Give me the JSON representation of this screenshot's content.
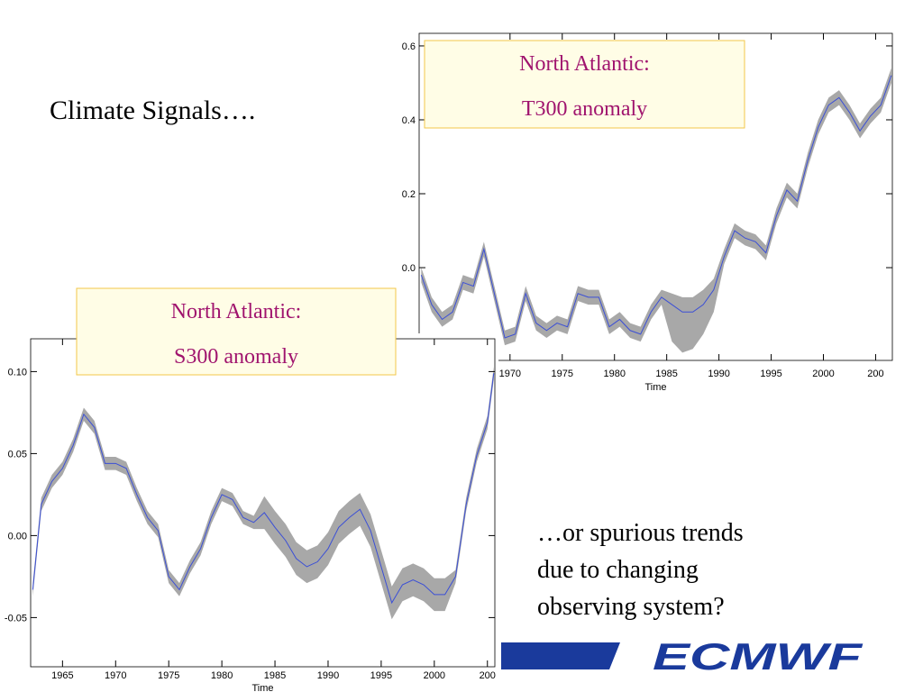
{
  "slide": {
    "title": "Climate Signals….",
    "note": [
      "…or spurious trends",
      "due to changing",
      "observing system?"
    ],
    "logo": "ECMWF"
  },
  "chart_data": [
    {
      "type": "line",
      "annotation": [
        "North Atlantic:",
        "T300 anomaly"
      ],
      "xlabel": "Time",
      "x": [
        1961.5,
        1962.5,
        1963.5,
        1964.5,
        1965.5,
        1966.5,
        1967.5,
        1968.5,
        1969.5,
        1970.5,
        1971.5,
        1972.5,
        1973.5,
        1974.5,
        1975.5,
        1976.5,
        1977.5,
        1978.5,
        1979.5,
        1980.5,
        1981.5,
        1982.5,
        1983.5,
        1984.5,
        1985.5,
        1986.5,
        1987.5,
        1988.5,
        1989.5,
        1990.5,
        1991.5,
        1992.5,
        1993.5,
        1994.5,
        1995.5,
        1996.5,
        1997.5,
        1998.5,
        1999.5,
        2000.5,
        2001.5,
        2002.5,
        2003.5,
        2004.5,
        2005.5,
        2006.5
      ],
      "series": [
        {
          "color": "#3b4fd6",
          "values": [
            -0.02,
            -0.1,
            -0.14,
            -0.12,
            -0.04,
            -0.05,
            0.05,
            -0.07,
            -0.19,
            -0.18,
            -0.07,
            -0.15,
            -0.17,
            -0.15,
            -0.16,
            -0.07,
            -0.08,
            -0.08,
            -0.16,
            -0.14,
            -0.17,
            -0.18,
            -0.12,
            -0.08,
            -0.1,
            -0.12,
            -0.12,
            -0.1,
            -0.06,
            0.03,
            0.1,
            0.08,
            0.07,
            0.04,
            0.14,
            0.21,
            0.18,
            0.29,
            0.38,
            0.44,
            0.46,
            0.42,
            0.37,
            0.41,
            0.44,
            0.52
          ]
        }
      ],
      "band": {
        "color": "#a8a8a8",
        "upper": [
          0.0,
          -0.08,
          -0.12,
          -0.1,
          -0.02,
          -0.03,
          0.07,
          -0.05,
          -0.17,
          -0.16,
          -0.05,
          -0.13,
          -0.15,
          -0.13,
          -0.14,
          -0.05,
          -0.06,
          -0.06,
          -0.14,
          -0.12,
          -0.15,
          -0.16,
          -0.1,
          -0.06,
          -0.07,
          -0.08,
          -0.08,
          -0.06,
          -0.03,
          0.05,
          0.12,
          0.1,
          0.09,
          0.06,
          0.16,
          0.23,
          0.2,
          0.31,
          0.4,
          0.46,
          0.48,
          0.44,
          0.39,
          0.43,
          0.46,
          0.54
        ],
        "lower": [
          -0.04,
          -0.12,
          -0.16,
          -0.14,
          -0.06,
          -0.07,
          0.03,
          -0.09,
          -0.21,
          -0.2,
          -0.09,
          -0.17,
          -0.19,
          -0.17,
          -0.18,
          -0.09,
          -0.1,
          -0.1,
          -0.18,
          -0.16,
          -0.19,
          -0.2,
          -0.14,
          -0.1,
          -0.2,
          -0.23,
          -0.22,
          -0.18,
          -0.12,
          0.01,
          0.08,
          0.06,
          0.05,
          0.02,
          0.12,
          0.19,
          0.16,
          0.27,
          0.36,
          0.42,
          0.44,
          0.4,
          0.35,
          0.39,
          0.42,
          0.5
        ]
      },
      "xlim": [
        1961.3,
        2006.6
      ],
      "ylim": [
        -0.251,
        0.634
      ],
      "xticks": [
        1970,
        1975,
        1980,
        1985,
        1990,
        1995,
        2000,
        {
          "value": 2005,
          "label": "200"
        }
      ],
      "yticks": [
        {
          "value": 0,
          "label": "0.0"
        },
        0.2,
        0.4,
        0.6
      ]
    },
    {
      "type": "line",
      "annotation": [
        "North Atlantic:",
        "S300 anomaly"
      ],
      "xlabel": "Time",
      "x": [
        1962.2,
        1963,
        1964,
        1965,
        1966,
        1967,
        1968,
        1969,
        1970,
        1971,
        1972,
        1973,
        1974,
        1975,
        1976,
        1977,
        1978,
        1979,
        1980,
        1981,
        1982,
        1983,
        1984,
        1985,
        1986,
        1987,
        1988,
        1989,
        1990,
        1991,
        1992,
        1993,
        1994,
        1995,
        1996,
        1997,
        1998,
        1999,
        2000,
        2001,
        2002,
        2003,
        2004,
        2005,
        2005.6
      ],
      "series": [
        {
          "color": "#3b4fd6",
          "values": [
            -0.033,
            0.019,
            0.033,
            0.041,
            0.055,
            0.074,
            0.066,
            0.044,
            0.044,
            0.041,
            0.025,
            0.011,
            0.003,
            -0.025,
            -0.033,
            -0.019,
            -0.008,
            0.011,
            0.025,
            0.022,
            0.011,
            0.008,
            0.014,
            0.005,
            -0.003,
            -0.014,
            -0.019,
            -0.016,
            -0.008,
            0.005,
            0.011,
            0.016,
            0.003,
            -0.019,
            -0.041,
            -0.03,
            -0.027,
            -0.03,
            -0.036,
            -0.036,
            -0.025,
            0.019,
            0.049,
            0.069,
            0.099
          ]
        }
      ],
      "band": {
        "color": "#a8a8a8",
        "upper": [
          -0.029,
          0.023,
          0.037,
          0.045,
          0.059,
          0.078,
          0.07,
          0.048,
          0.048,
          0.045,
          0.029,
          0.015,
          0.007,
          -0.021,
          -0.029,
          -0.015,
          -0.004,
          0.015,
          0.029,
          0.026,
          0.015,
          0.012,
          0.024,
          0.015,
          0.007,
          -0.004,
          -0.009,
          -0.006,
          0.002,
          0.015,
          0.021,
          0.026,
          0.013,
          -0.009,
          -0.031,
          -0.02,
          -0.017,
          -0.02,
          -0.026,
          -0.026,
          -0.021,
          0.023,
          0.053,
          0.073,
          0.103
        ],
        "lower": [
          -0.037,
          0.015,
          0.029,
          0.037,
          0.051,
          0.07,
          0.062,
          0.04,
          0.04,
          0.037,
          0.021,
          0.007,
          -0.001,
          -0.029,
          -0.037,
          -0.023,
          -0.012,
          0.007,
          0.021,
          0.018,
          0.007,
          0.004,
          0.004,
          -0.005,
          -0.013,
          -0.024,
          -0.029,
          -0.026,
          -0.018,
          -0.005,
          0.001,
          0.006,
          -0.007,
          -0.029,
          -0.051,
          -0.04,
          -0.037,
          -0.04,
          -0.046,
          -0.046,
          -0.029,
          0.015,
          0.045,
          0.065,
          0.095
        ]
      },
      "xlim": [
        1962.0,
        2005.7
      ],
      "ylim": [
        -0.08,
        0.12
      ],
      "xticks": [
        1965,
        1970,
        1975,
        1980,
        1985,
        1990,
        1995,
        2000,
        {
          "value": 2005,
          "label": "200"
        }
      ],
      "yticks": [
        {
          "value": -0.05,
          "label": "-0.05"
        },
        {
          "value": 0,
          "label": "0.00"
        },
        {
          "value": 0.05,
          "label": "0.05"
        },
        {
          "value": 0.1,
          "label": "0.10"
        }
      ]
    }
  ]
}
